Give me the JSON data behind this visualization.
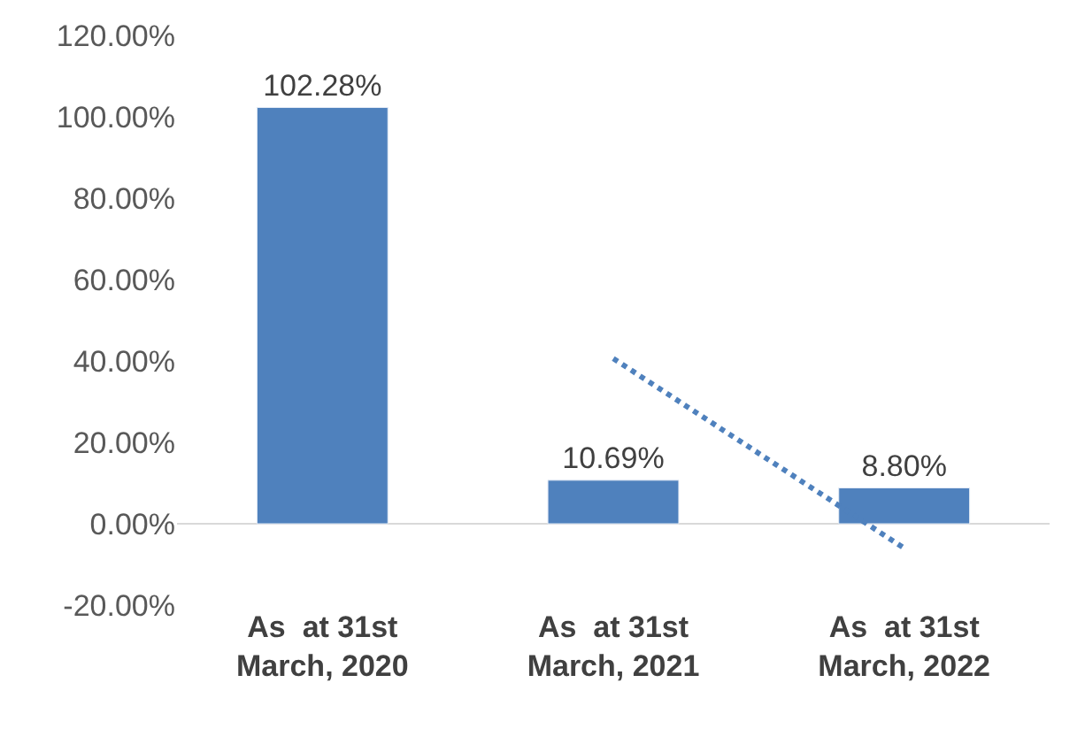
{
  "chart_data": {
    "type": "bar",
    "categories": [
      "As  at 31st March, 2020",
      "As  at 31st March, 2021",
      "As  at 31st March, 2022"
    ],
    "series": [
      {
        "color": "#4f81bd",
        "values": [
          102.28,
          10.69,
          8.8
        ],
        "value_labels": [
          "102.28%",
          "10.69%",
          "8.80%"
        ]
      },
      {
        "type": "line",
        "color": "#4f81bd",
        "line_style": "dotted",
        "values": [
          null,
          40.6,
          -6.0
        ]
      }
    ],
    "ylim": [
      -20,
      120
    ],
    "yticks": [
      {
        "value": -20,
        "label": "-20.00%"
      },
      {
        "value": 0,
        "label": "0.00%"
      },
      {
        "value": 20,
        "label": "20.00%"
      },
      {
        "value": 40,
        "label": "40.00%"
      },
      {
        "value": 60,
        "label": "60.00%"
      },
      {
        "value": 80,
        "label": "80.00%"
      },
      {
        "value": 100,
        "label": "100.00%"
      },
      {
        "value": 120,
        "label": "120.00%"
      }
    ],
    "ref_lines": [
      {
        "axis": "y",
        "value": 0,
        "color": "#d9d9d9"
      }
    ],
    "grid": false
  }
}
